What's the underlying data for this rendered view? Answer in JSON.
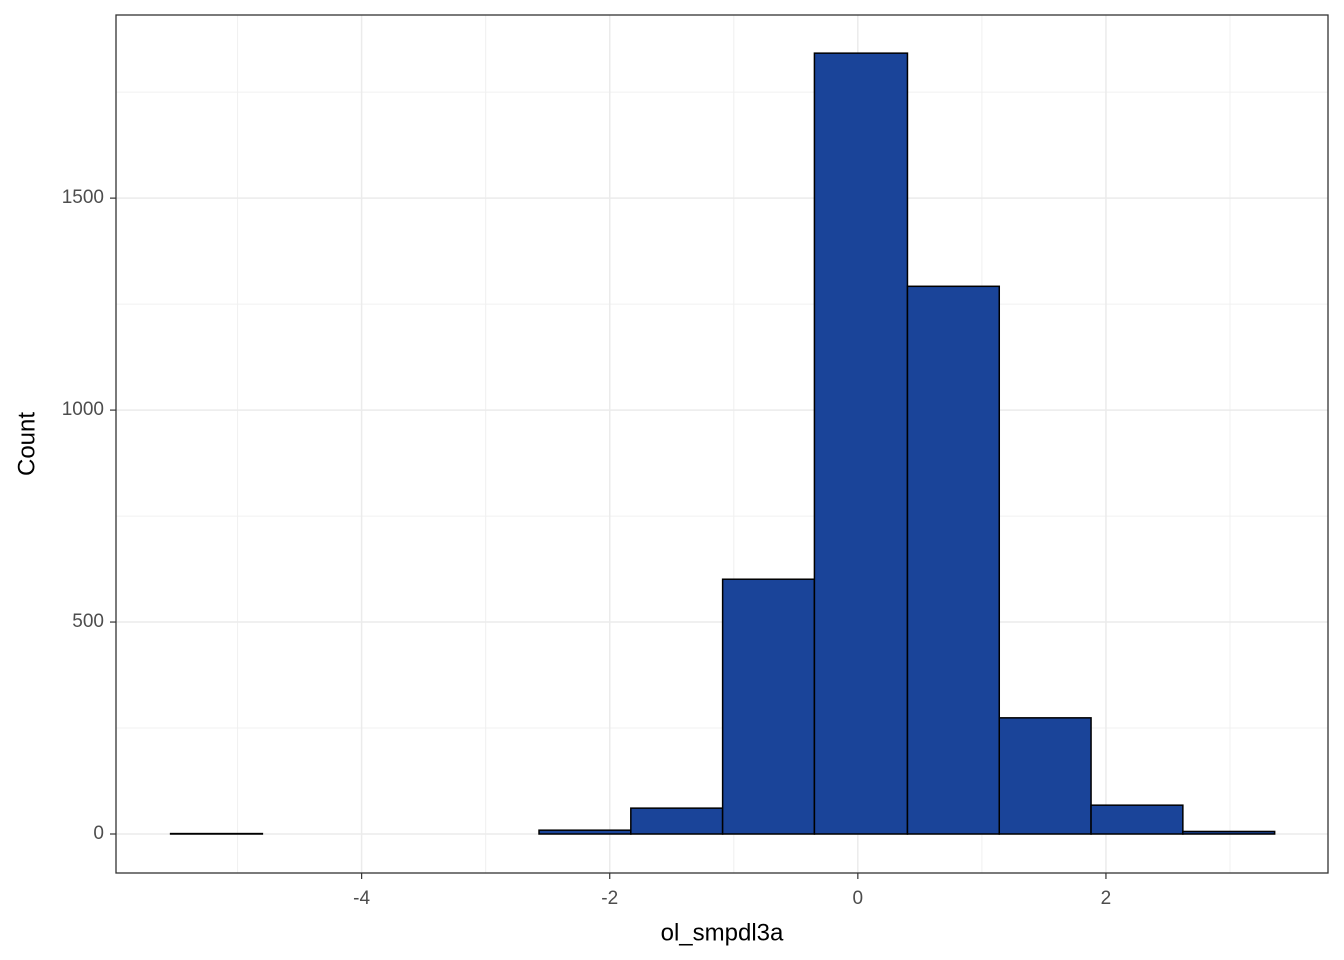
{
  "chart_data": {
    "type": "histogram",
    "x_label": "ol_smpdl3a",
    "y_label": "Count",
    "bins": [
      -5.54,
      -4.8,
      -4.06,
      -3.31,
      -2.57,
      -1.83,
      -1.09,
      -0.35,
      0.4,
      1.14,
      1.88,
      2.62,
      3.36
    ],
    "values": [
      1,
      0,
      0,
      0,
      9,
      61,
      601,
      1842,
      1292,
      274,
      68,
      6
    ],
    "color": "#1a4499",
    "edgecolor": "#000000",
    "xlim": [
      -5.98,
      3.79
    ],
    "ylim": [
      -92,
      1932
    ],
    "xticks": [
      -4,
      -2,
      0,
      2
    ],
    "yticks": [
      0,
      500,
      1000,
      1500
    ],
    "minor_xticks": [
      -5,
      -3,
      -1,
      1,
      3
    ],
    "minor_yticks": [
      250,
      750,
      1250,
      1750
    ],
    "grid": true
  }
}
